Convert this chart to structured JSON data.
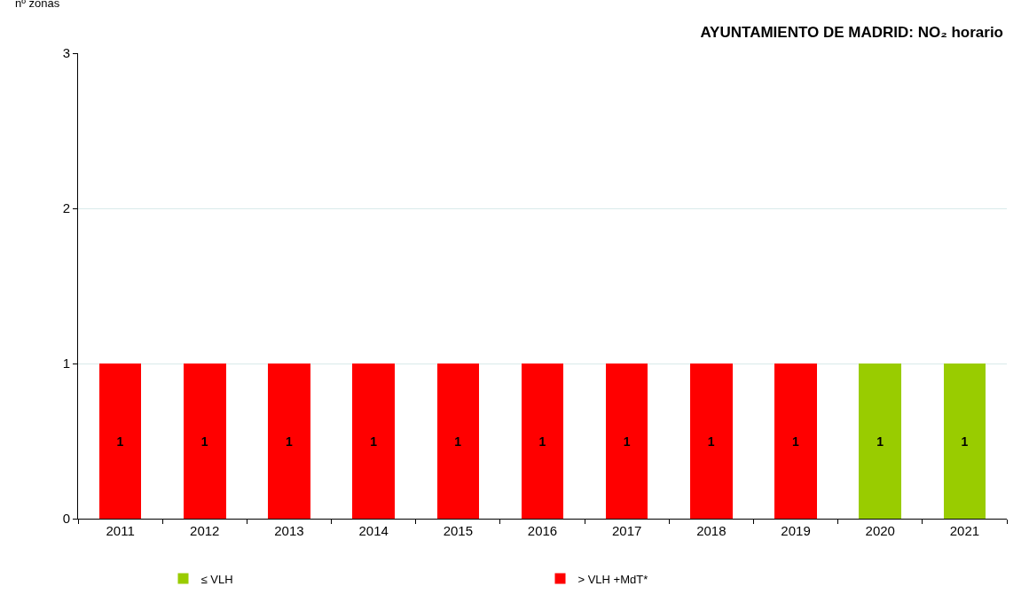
{
  "chart_data": {
    "type": "bar",
    "title": "AYUNTAMIENTO DE MADRID: NO₂ horario",
    "ylabel": "nº zonas",
    "stacked": true,
    "data_labels": true,
    "grid": "y",
    "legend": "bottom",
    "categories": [
      "2011",
      "2012",
      "2013",
      "2014",
      "2015",
      "2016",
      "2017",
      "2018",
      "2019",
      "2020",
      "2021"
    ],
    "ylim": [
      0,
      3
    ],
    "yticks": [
      0,
      1,
      2,
      3
    ],
    "series": [
      {
        "name": "≤ VLH",
        "color": "#99cc00",
        "values": [
          null,
          null,
          null,
          null,
          null,
          null,
          null,
          null,
          null,
          1,
          1
        ]
      },
      {
        "name": "> VLH +MdT*",
        "color": "#ff0000",
        "values": [
          1,
          1,
          1,
          1,
          1,
          1,
          1,
          1,
          1,
          null,
          null
        ]
      }
    ]
  }
}
